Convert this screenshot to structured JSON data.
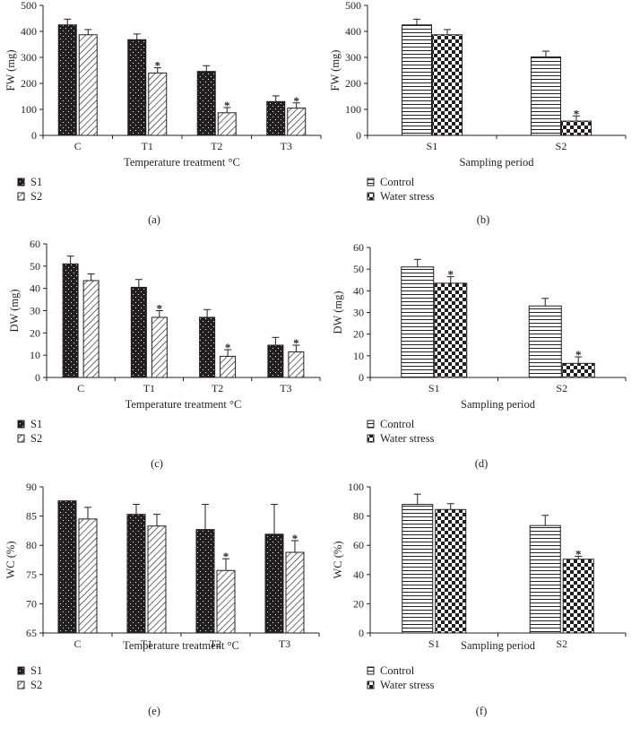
{
  "chart_data": [
    {
      "id": "a",
      "type": "bar",
      "panel_label": "(a)",
      "categories": [
        "C",
        "T1",
        "T2",
        "T3"
      ],
      "series": [
        {
          "name": "S1",
          "values": [
            425,
            368,
            246,
            130
          ],
          "errors": [
            22,
            22,
            22,
            22
          ],
          "sig": [
            false,
            false,
            false,
            false
          ]
        },
        {
          "name": "S2",
          "values": [
            387,
            240,
            87,
            105
          ],
          "errors": [
            20,
            20,
            20,
            20
          ],
          "sig": [
            false,
            true,
            true,
            true
          ]
        }
      ],
      "xlabel": "Temperature treatment °C",
      "ylabel": "FW (mg)",
      "ylim": [
        0,
        500
      ],
      "yticks": [
        "0",
        "100",
        "200",
        "300",
        "400",
        "500"
      ],
      "legend": [
        "S1",
        "S2"
      ]
    },
    {
      "id": "b",
      "type": "bar",
      "panel_label": "(b)",
      "categories": [
        "S1",
        "S2"
      ],
      "series": [
        {
          "name": "Control",
          "values": [
            425,
            302
          ],
          "errors": [
            22,
            22
          ],
          "sig": [
            false,
            false
          ]
        },
        {
          "name": "Water stress",
          "values": [
            387,
            55
          ],
          "errors": [
            20,
            20
          ],
          "sig": [
            false,
            true
          ]
        }
      ],
      "xlabel": "Sampling period",
      "ylabel": "FW (mg)",
      "ylim": [
        0,
        500
      ],
      "yticks": [
        "0",
        "100",
        "200",
        "300",
        "400",
        "500"
      ],
      "legend": [
        "Control",
        "Water stress"
      ]
    },
    {
      "id": "c",
      "type": "bar",
      "panel_label": "(c)",
      "categories": [
        "C",
        "T1",
        "T2",
        "T3"
      ],
      "series": [
        {
          "name": "S1",
          "values": [
            51,
            40.5,
            27,
            14.5
          ],
          "errors": [
            3.5,
            3.5,
            3.5,
            3.5
          ],
          "sig": [
            false,
            false,
            false,
            false
          ]
        },
        {
          "name": "S2",
          "values": [
            43.5,
            27,
            9.5,
            11.5
          ],
          "errors": [
            3,
            3,
            3,
            3
          ],
          "sig": [
            false,
            true,
            true,
            true
          ]
        }
      ],
      "xlabel": "Temperature treatment °C",
      "ylabel": "DW (mg)",
      "ylim": [
        0,
        60
      ],
      "yticks": [
        "0",
        "10",
        "20",
        "30",
        "40",
        "50",
        "60"
      ],
      "legend": [
        "S1",
        "S2"
      ]
    },
    {
      "id": "d",
      "type": "bar",
      "panel_label": "(d)",
      "categories": [
        "S1",
        "S2"
      ],
      "series": [
        {
          "name": "Control",
          "values": [
            51,
            33
          ],
          "errors": [
            3.5,
            3.5
          ],
          "sig": [
            false,
            false
          ]
        },
        {
          "name": "Water stress",
          "values": [
            43.5,
            6.5
          ],
          "errors": [
            3,
            3
          ],
          "sig": [
            true,
            true
          ]
        }
      ],
      "xlabel": "Sampling period",
      "ylabel": "DW (mg)",
      "ylim": [
        0,
        60
      ],
      "yticks": [
        "0",
        "10",
        "20",
        "30",
        "40",
        "50",
        "60"
      ],
      "legend": [
        "Control",
        "Water stress"
      ]
    },
    {
      "id": "e",
      "type": "bar",
      "panel_label": "(e)",
      "categories": [
        "C",
        "T1",
        "T2",
        "T3"
      ],
      "series": [
        {
          "name": "S1",
          "values": [
            87.6,
            85.3,
            82.7,
            81.9
          ],
          "errors": [
            0,
            1.7,
            4.3,
            5.1
          ],
          "sig": [
            false,
            false,
            false,
            false
          ]
        },
        {
          "name": "S2",
          "values": [
            84.5,
            83.3,
            75.7,
            78.8
          ],
          "errors": [
            2,
            2,
            2,
            2
          ],
          "sig": [
            false,
            false,
            true,
            true
          ]
        }
      ],
      "xlabel": "Temperature treatment °C",
      "ylabel": "WC (%)",
      "ylim": [
        65,
        90
      ],
      "yticks": [
        "65",
        "70",
        "75",
        "80",
        "85",
        "90"
      ],
      "legend": [
        "S1",
        "S2"
      ]
    },
    {
      "id": "f",
      "type": "bar",
      "panel_label": "(f)",
      "categories": [
        "S1",
        "S2"
      ],
      "series": [
        {
          "name": "Control",
          "values": [
            88,
            73.5
          ],
          "errors": [
            7,
            7
          ],
          "sig": [
            false,
            false
          ]
        },
        {
          "name": "Water stress",
          "values": [
            84.5,
            50.5
          ],
          "errors": [
            4,
            2
          ],
          "sig": [
            false,
            true
          ]
        }
      ],
      "xlabel": "Sampling period",
      "ylabel": "WC (%)",
      "ylim": [
        0,
        100
      ],
      "yticks": [
        "0",
        "20",
        "40",
        "60",
        "80",
        "100"
      ],
      "legend": [
        "Control",
        "Water stress"
      ]
    }
  ],
  "significance_marker": "*"
}
